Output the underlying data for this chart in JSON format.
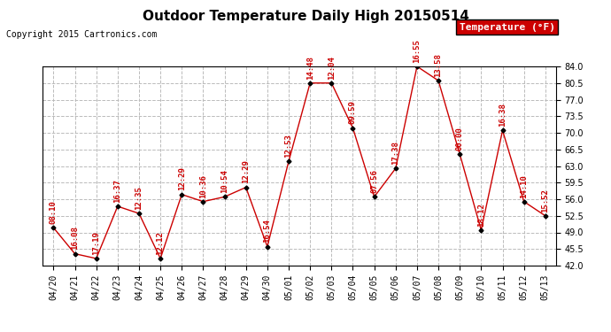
{
  "title": "Outdoor Temperature Daily High 20150514",
  "copyright": "Copyright 2015 Cartronics.com",
  "legend_label": "Temperature (°F)",
  "dates": [
    "04/20",
    "04/21",
    "04/22",
    "04/23",
    "04/24",
    "04/25",
    "04/26",
    "04/27",
    "04/28",
    "04/29",
    "04/30",
    "05/01",
    "05/02",
    "05/03",
    "05/04",
    "05/05",
    "05/06",
    "05/07",
    "05/08",
    "05/09",
    "05/10",
    "05/11",
    "05/12",
    "05/13"
  ],
  "temps": [
    50.0,
    44.5,
    43.5,
    54.5,
    53.0,
    43.5,
    57.0,
    55.5,
    56.5,
    58.5,
    46.0,
    64.0,
    80.5,
    80.5,
    71.0,
    56.5,
    62.5,
    84.0,
    81.0,
    65.5,
    49.5,
    70.5,
    55.5,
    52.5
  ],
  "times": [
    "08:10",
    "16:08",
    "17:19",
    "16:37",
    "12:35",
    "12:12",
    "12:29",
    "10:36",
    "10:54",
    "12:29",
    "16:54",
    "12:53",
    "14:48",
    "12:04",
    "09:59",
    "07:56",
    "17:38",
    "16:55",
    "13:58",
    "00:00",
    "18:12",
    "16:38",
    "14:10",
    "15:52"
  ],
  "ylim": [
    42.0,
    84.0
  ],
  "ytick_vals": [
    42.0,
    45.5,
    49.0,
    52.5,
    56.0,
    59.5,
    63.0,
    66.5,
    70.0,
    73.5,
    77.0,
    80.5,
    84.0
  ],
  "ytick_labels": [
    "42.0",
    "45.5",
    "49.0",
    "52.5",
    "56.0",
    "59.5",
    "63.0",
    "66.5",
    "70.0",
    "73.5",
    "77.0",
    "80.5",
    "84.0"
  ],
  "line_color": "#cc0000",
  "marker_color": "#000000",
  "label_color": "#cc0000",
  "bg_color": "#ffffff",
  "grid_color": "#bbbbbb",
  "title_fontsize": 11,
  "tick_fontsize": 7,
  "label_fontsize": 6.5,
  "legend_bg": "#cc0000",
  "legend_text_color": "#ffffff",
  "legend_fontsize": 8,
  "copyright_fontsize": 7
}
